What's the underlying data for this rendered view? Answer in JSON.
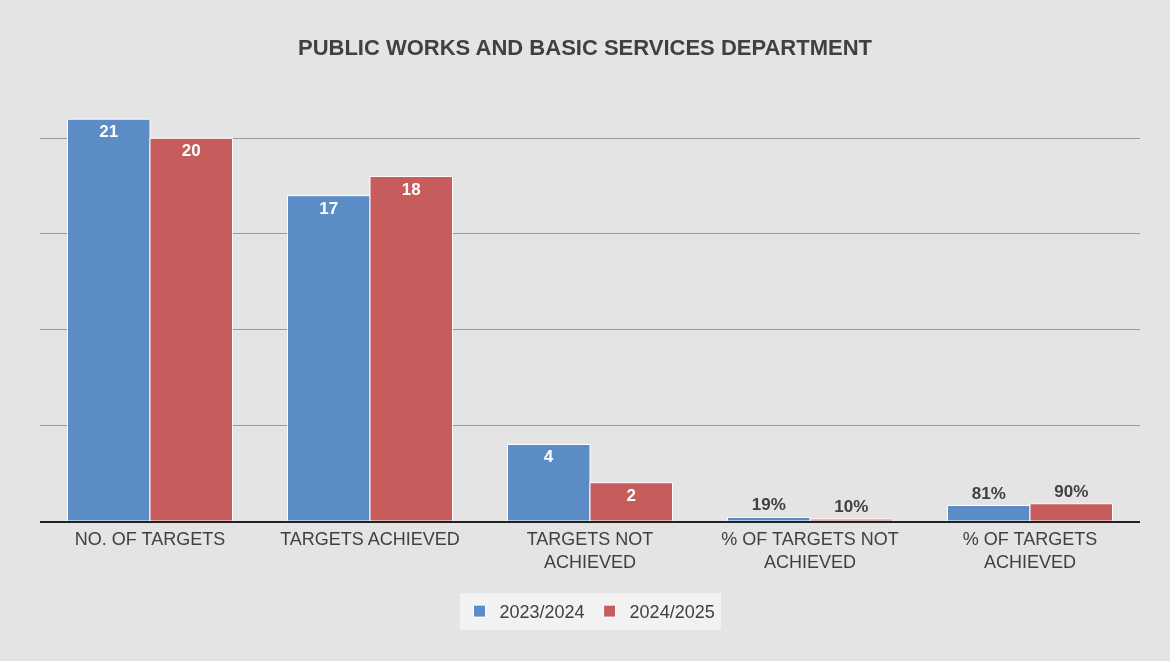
{
  "chart_data": {
    "type": "bar",
    "title": "PUBLIC WORKS AND BASIC SERVICES DEPARTMENT",
    "categories": [
      "NO. OF TARGETS",
      "TARGETS ACHIEVED",
      "TARGETS NOT ACHIEVED",
      "% OF TARGETS NOT ACHIEVED",
      "% OF TARGETS ACHIEVED"
    ],
    "series": [
      {
        "name": "2023/2024",
        "color": "#5b8cc6",
        "values": [
          21,
          17,
          4,
          0.19,
          0.81
        ],
        "value_labels": [
          "21",
          "17",
          "4",
          "19%",
          "81%"
        ]
      },
      {
        "name": "2024/2025",
        "color": "#c65c5c",
        "values": [
          20,
          18,
          2,
          0.1,
          0.9
        ],
        "value_labels": [
          "20",
          "18",
          "2",
          "10%",
          "90%"
        ]
      }
    ],
    "yticks": [
      {
        "value": 0,
        "label": null
      },
      {
        "value": 5,
        "label": null
      },
      {
        "value": 10,
        "label": null
      },
      {
        "value": 15,
        "label": null
      },
      {
        "value": 20,
        "label": null
      }
    ],
    "tick_labels": "x",
    "grid": "y",
    "legend": "bottom"
  }
}
